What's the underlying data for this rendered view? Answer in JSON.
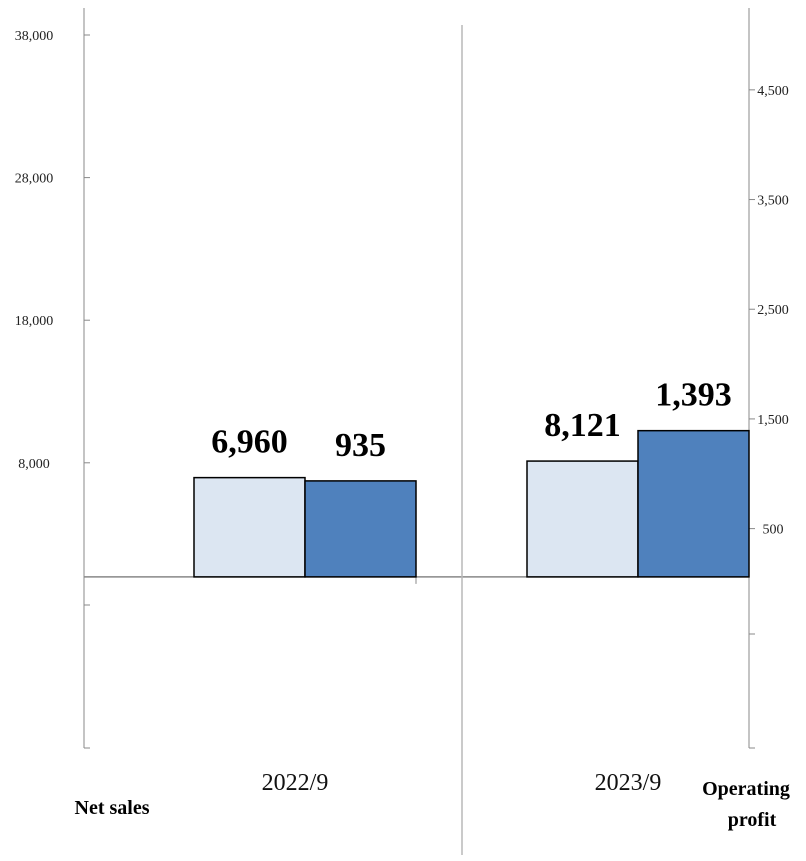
{
  "chart_data": {
    "type": "bar",
    "categories": [
      "2022/9",
      "2023/9"
    ],
    "series": [
      {
        "name": "Net sales",
        "axis": "left",
        "values": [
          6960,
          8121
        ],
        "labels": [
          "6,960",
          "8,121"
        ],
        "color": "#dce6f2"
      },
      {
        "name": "Operating profit",
        "axis": "right",
        "values": [
          935,
          1393
        ],
        "labels": [
          "935",
          "1,393"
        ],
        "color": "#4f81bd"
      }
    ],
    "left_axis": {
      "title": "Net sales",
      "ylim": [
        -12000,
        38000
      ],
      "ticks": [
        8000,
        18000,
        28000,
        38000
      ],
      "tick_labels": [
        "8,000",
        "18,000",
        "28,000",
        "38,000"
      ]
    },
    "right_axis": {
      "title_lines": [
        "Operating",
        "profit"
      ],
      "ylim": [
        -1500,
        5000
      ],
      "ticks": [
        500,
        1500,
        2500,
        3500,
        4500
      ],
      "tick_labels": [
        "500",
        "1,500",
        "2,500",
        "3,500",
        "4,500"
      ]
    },
    "grid": false,
    "legend": "none"
  }
}
